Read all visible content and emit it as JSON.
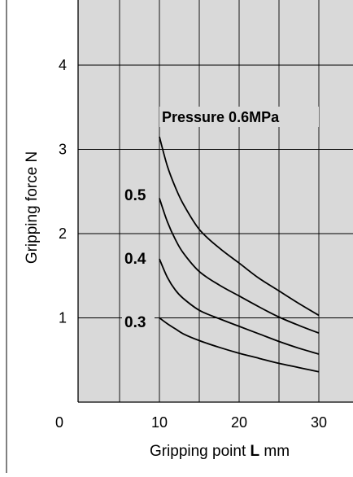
{
  "chart_data": {
    "type": "line",
    "title": "",
    "xlabel": "Gripping point",
    "xlabel_symbol": "L",
    "xlabel_unit": "mm",
    "ylabel": "Gripping force  N",
    "xlim": [
      0,
      30
    ],
    "ylim": [
      0,
      4.5
    ],
    "x_ticks": [
      0,
      10,
      20,
      30
    ],
    "y_ticks": [
      1,
      2,
      3,
      4
    ],
    "x_grid": [
      5,
      10,
      15,
      20,
      25,
      30
    ],
    "y_grid": [
      1,
      2,
      3,
      4
    ],
    "grid": true,
    "plot_background": "#d9d9d9",
    "line_color": "#000000",
    "series": [
      {
        "name": "Pressure 0.6MPa",
        "x": [
          10,
          11,
          12,
          13,
          15,
          17.5,
          20,
          22.5,
          25,
          27.5,
          30
        ],
        "y": [
          3.15,
          2.8,
          2.55,
          2.35,
          2.05,
          1.83,
          1.65,
          1.47,
          1.32,
          1.17,
          1.03
        ]
      },
      {
        "name": "0.5",
        "x": [
          10,
          11,
          12,
          13,
          15,
          17.5,
          20,
          22.5,
          25,
          27.5,
          30
        ],
        "y": [
          2.42,
          2.14,
          1.93,
          1.77,
          1.55,
          1.39,
          1.26,
          1.13,
          1.01,
          0.91,
          0.82
        ]
      },
      {
        "name": "0.4",
        "x": [
          10,
          11,
          12,
          13,
          15,
          17.5,
          20,
          22.5,
          25,
          27.5,
          30
        ],
        "y": [
          1.7,
          1.48,
          1.33,
          1.23,
          1.09,
          0.99,
          0.9,
          0.81,
          0.72,
          0.64,
          0.57
        ]
      },
      {
        "name": "0.3",
        "x": [
          10,
          11,
          12,
          13,
          15,
          17.5,
          20,
          22.5,
          25,
          27.5,
          30
        ],
        "y": [
          1.0,
          0.93,
          0.87,
          0.81,
          0.73,
          0.65,
          0.58,
          0.52,
          0.46,
          0.41,
          0.36
        ]
      }
    ]
  }
}
